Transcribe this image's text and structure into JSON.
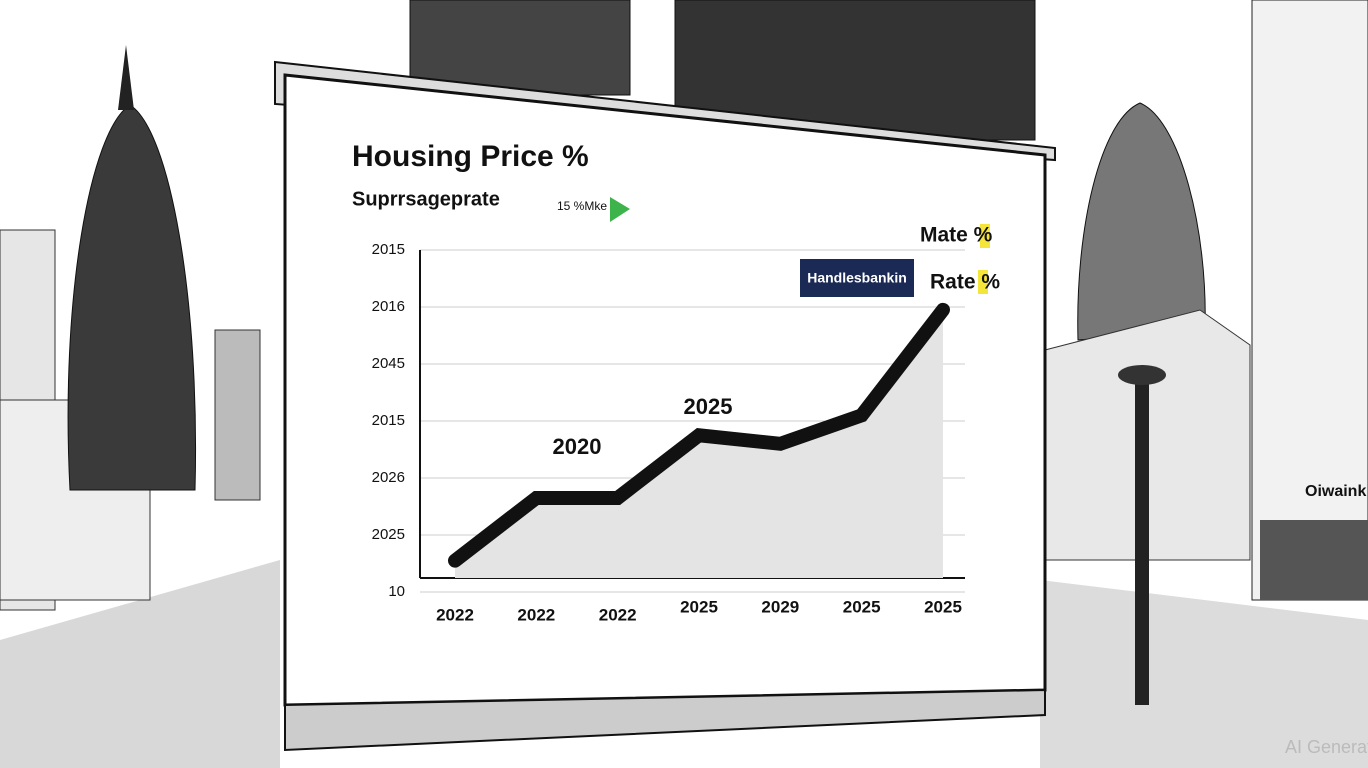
{
  "chart_data": {
    "type": "line",
    "title": "Housing Price %",
    "subtitle": "Suprrsageprate",
    "note": "15 %Mke",
    "categories": [
      "2022",
      "2022",
      "2022",
      "2025",
      "2029",
      "2025",
      "2025"
    ],
    "values": [
      0.55,
      1.65,
      1.65,
      2.75,
      2.6,
      3.1,
      4.95
    ],
    "color": "#111111",
    "ylim": [
      0,
      6
    ],
    "yticks": [
      {
        "value": 0,
        "label": "10"
      },
      {
        "value": 1,
        "label": "2025"
      },
      {
        "value": 2,
        "label": "2026"
      },
      {
        "value": 3,
        "label": "2015"
      },
      {
        "value": 4,
        "label": "2045"
      },
      {
        "value": 5,
        "label": "2016"
      },
      {
        "value": 6,
        "label": "2015"
      }
    ],
    "grid": true,
    "annotations": [
      "2020",
      "2025"
    ],
    "legend": [
      "Mate %",
      "Rate %"
    ],
    "badge": "Handlesbankin"
  },
  "scene": {
    "shop_sign": "Oiwaink",
    "watermark": "AI Generated"
  }
}
